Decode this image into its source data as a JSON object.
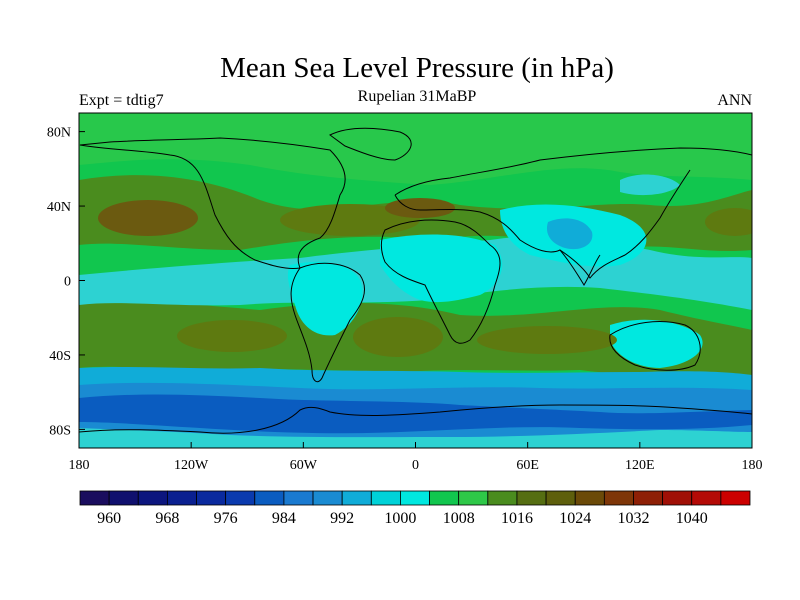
{
  "title": "Mean Sea Level Pressure (in hPa)",
  "subtitle": "Rupelian  31MaBP",
  "left_label": "Expt = tdtig7",
  "right_label": "ANN",
  "map": {
    "projection": "cylindrical-equidistant",
    "lon_range": [
      -180,
      180
    ],
    "lat_range": [
      -90,
      90
    ],
    "x_ticks": [
      {
        "lon": -180,
        "label": "180"
      },
      {
        "lon": -120,
        "label": "120W"
      },
      {
        "lon": -60,
        "label": "60W"
      },
      {
        "lon": 0,
        "label": "0"
      },
      {
        "lon": 60,
        "label": "60E"
      },
      {
        "lon": 120,
        "label": "120E"
      },
      {
        "lon": 180,
        "label": "180"
      }
    ],
    "y_ticks": [
      {
        "lat": 80,
        "label": "80N"
      },
      {
        "lat": 40,
        "label": "40N"
      },
      {
        "lat": 0,
        "label": "0"
      },
      {
        "lat": -40,
        "label": "40S"
      },
      {
        "lat": -80,
        "label": "80S"
      }
    ],
    "colors": {
      "land_outline": "#000000",
      "c1000": "#11c64e",
      "c1008": "#28c84b",
      "c1012": "#4a8c1e",
      "c1016": "#5e7a10",
      "c1020": "#6b5a10",
      "c996": "#2dd2d2",
      "c992": "#00e8e0",
      "c988": "#10acd8",
      "c984": "#1a8bd2",
      "c980": "#0a5cc0"
    }
  },
  "colorbar": {
    "colors": [
      "#1a0d5e",
      "#10106e",
      "#0c167e",
      "#0a2090",
      "#0a2a9e",
      "#0a3aae",
      "#0a5cc0",
      "#1a7ad0",
      "#1a8bd2",
      "#10acd8",
      "#00d2d8",
      "#00e8e0",
      "#11c64e",
      "#2ec848",
      "#4a8c1e",
      "#556e12",
      "#5e5f0c",
      "#6b4a08",
      "#7e3608",
      "#8e2006",
      "#a01006",
      "#b40a06",
      "#cc0000"
    ],
    "tick_labels": [
      "960",
      "968",
      "976",
      "984",
      "992",
      "1000",
      "1008",
      "1016",
      "1024",
      "1032",
      "1040"
    ]
  }
}
